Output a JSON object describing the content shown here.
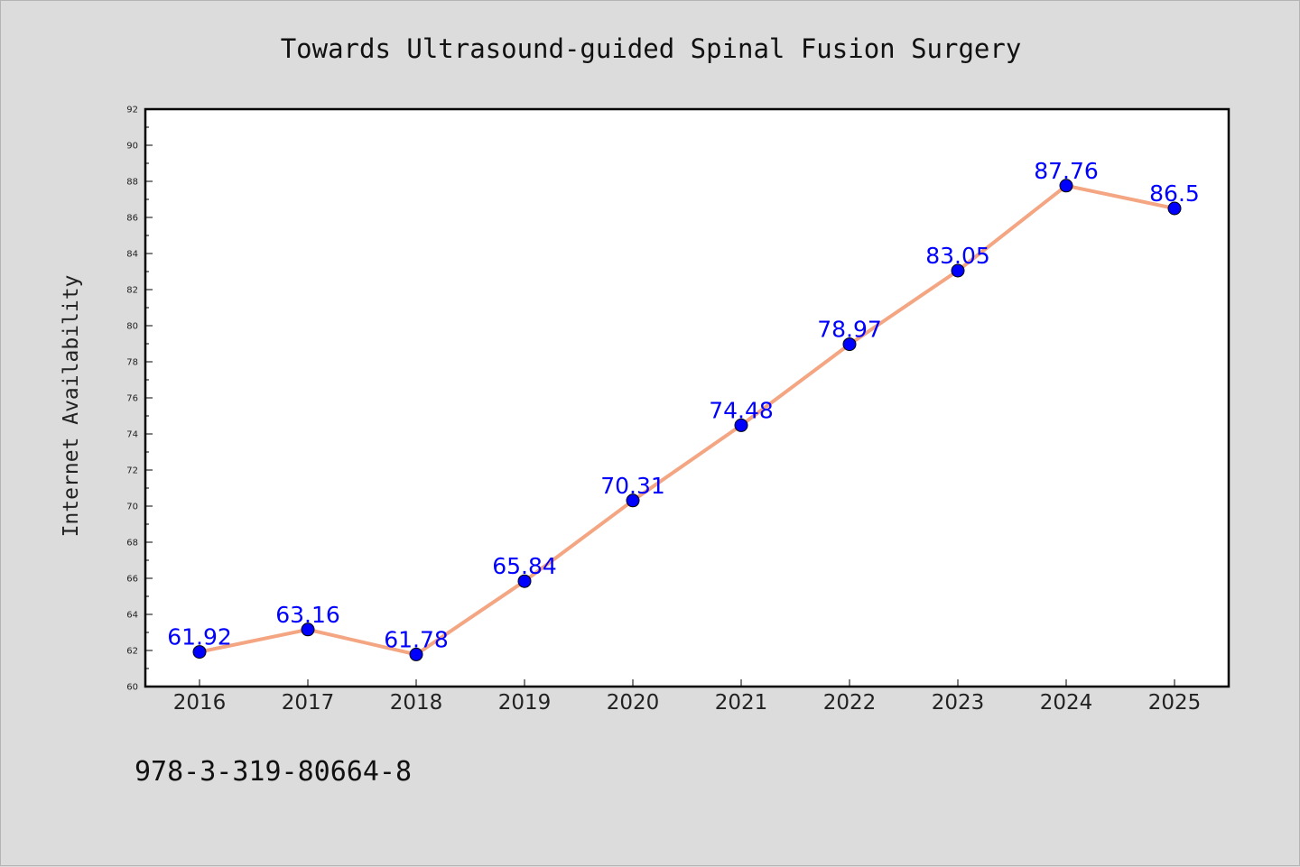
{
  "chart_data": {
    "type": "line",
    "title": "Towards Ultrasound-guided Spinal Fusion Surgery",
    "xlabel": "",
    "ylabel": "Internet Availability",
    "categories": [
      "2016",
      "2017",
      "2018",
      "2019",
      "2020",
      "2021",
      "2022",
      "2023",
      "2024",
      "2025"
    ],
    "series": [
      {
        "values": [
          61.92,
          63.16,
          61.78,
          65.84,
          70.31,
          74.48,
          78.97,
          83.05,
          87.76,
          86.5
        ],
        "labels": [
          "61.92",
          "63.16",
          "61.78",
          "65.84",
          "70.31",
          "74.48",
          "78.97",
          "83.05",
          "87.76",
          "86.5"
        ],
        "line_color": "#f4a582",
        "marker_color": "#0000ff",
        "label_color": "#0000ff"
      }
    ],
    "ylim": [
      60,
      92
    ],
    "yticks": [
      "60",
      "62",
      "64",
      "66",
      "68",
      "70",
      "72",
      "74",
      "76",
      "78",
      "80",
      "82",
      "84",
      "86",
      "88",
      "90",
      "92"
    ],
    "grid": false,
    "legend": "none",
    "background": "#dcdcdc",
    "plot_background": "#ffffff"
  },
  "footer": {
    "isbn": "978-3-319-80664-8"
  }
}
